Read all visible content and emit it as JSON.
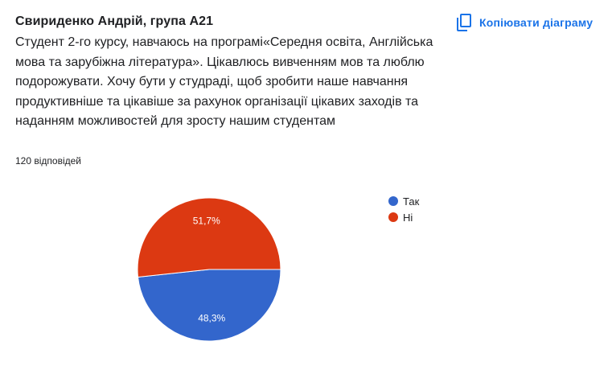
{
  "header": {
    "title": "Свириденко Андрій, група А21",
    "description": "Студент 2-го курсу, навчаюсь на програмі«Середня освіта, Англійська мова та зарубіжна література». Цікавлюсь вивченням мов та люблю подорожувати. Хочу бути у студраді, щоб зробити наше навчання продуктивніше та цікавіше за рахунок організації цікавих заходів та наданням можливостей для зросту нашим студентам",
    "responses": "120 відповідей"
  },
  "toolbar": {
    "copy_label": "Копіювати діаграму",
    "copy_icon": "copy-icon",
    "accent_color": "#1a73e8"
  },
  "chart_data": {
    "type": "pie",
    "categories": [
      "Так",
      "Ні"
    ],
    "values": [
      48.3,
      51.7
    ],
    "labels": [
      "48,3%",
      "51,7%"
    ],
    "colors": [
      "#3366cc",
      "#dc3912"
    ],
    "legend_position": "right"
  }
}
